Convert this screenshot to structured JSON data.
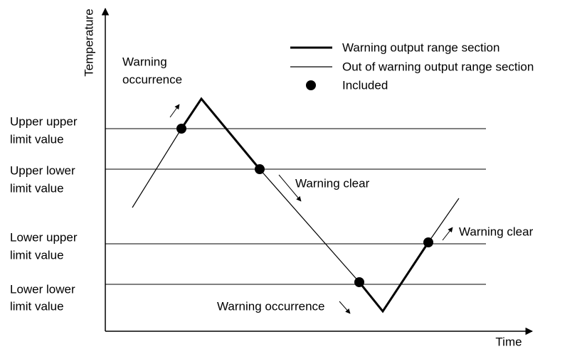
{
  "axes": {
    "y_label": "Temperature",
    "x_label": "Time"
  },
  "legend": [
    {
      "label": "Warning output range section"
    },
    {
      "label": "Out of warning output range section"
    },
    {
      "label": "Included"
    }
  ],
  "thresholds": [
    {
      "line1": "Upper upper",
      "line2": "limit value"
    },
    {
      "line1": "Upper lower",
      "line2": "limit value"
    },
    {
      "line1": "Lower upper",
      "line2": "limit value"
    },
    {
      "line1": "Lower lower",
      "line2": "limit value"
    }
  ],
  "annotations": [
    {
      "line1": "Warning",
      "line2": "occurrence"
    },
    {
      "text": "Warning clear"
    },
    {
      "text": "Warning clear"
    },
    {
      "text": "Warning occurrence"
    }
  ]
}
